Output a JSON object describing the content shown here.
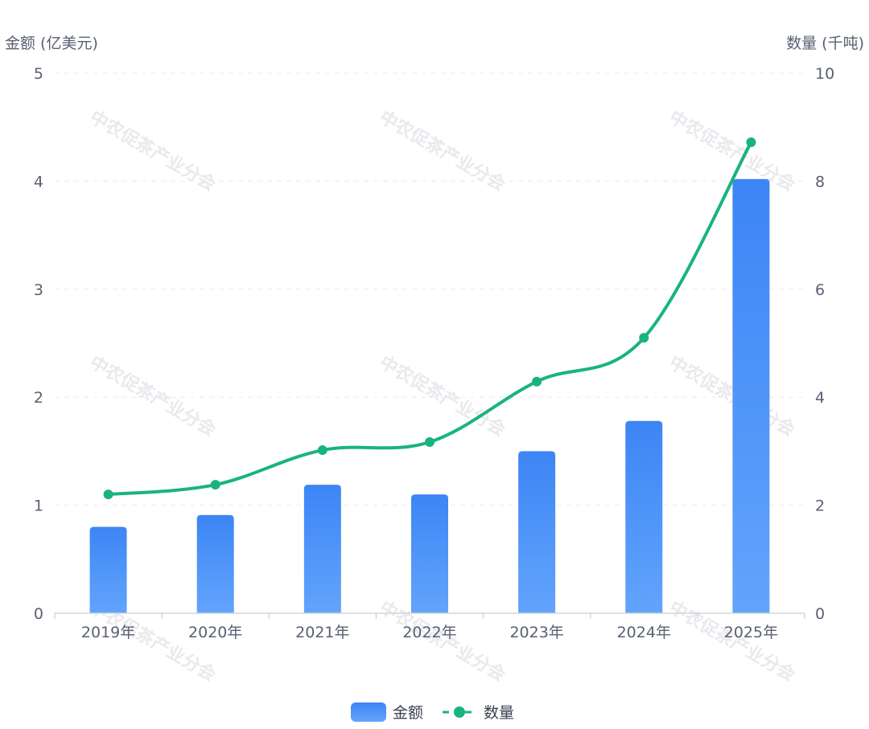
{
  "watermark": "中农促茶产业分会",
  "chart_data": {
    "type": "bar+line",
    "categories": [
      "2019年",
      "2020年",
      "2021年",
      "2022年",
      "2023年",
      "2024年",
      "2025年"
    ],
    "series": [
      {
        "name": "金额",
        "type": "bar",
        "axis": "left",
        "values": [
          0.8,
          0.91,
          1.19,
          1.1,
          1.5,
          1.78,
          4.02
        ]
      },
      {
        "name": "数量",
        "type": "line",
        "axis": "right",
        "smooth": true,
        "values": [
          2.2,
          2.38,
          3.02,
          3.17,
          4.29,
          5.1,
          8.72
        ]
      }
    ],
    "y_left": {
      "label": "金额 (亿美元)",
      "min": 0,
      "max": 5,
      "ticks": [
        0,
        1,
        2,
        3,
        4,
        5
      ]
    },
    "y_right": {
      "label": "数量 (千吨)",
      "min": 0,
      "max": 10,
      "ticks": [
        0,
        2,
        4,
        6,
        8,
        10
      ]
    },
    "grid": true,
    "legend_position": "bottom-center",
    "colors": {
      "bar_top": "#3d85f5",
      "bar_bottom": "#62a4fc",
      "line": "#19b47c",
      "axis_text": "#5a6072",
      "grid": "#ececf0"
    }
  }
}
